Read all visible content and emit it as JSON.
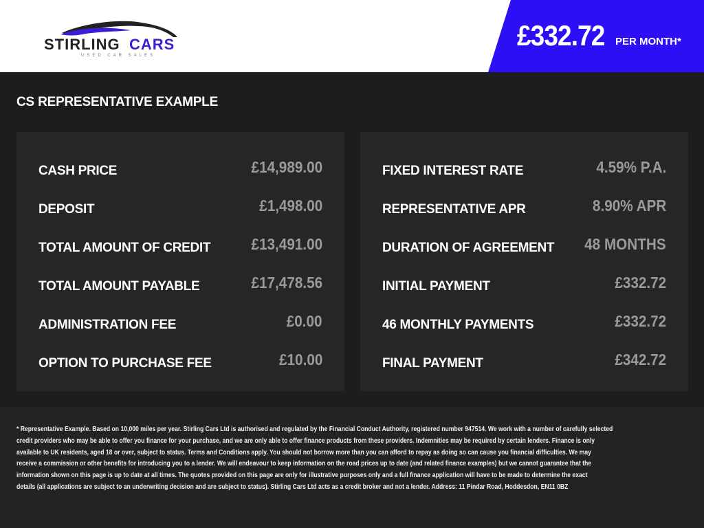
{
  "header": {
    "logo": {
      "brand_main": "STIRLING",
      "brand_accent": "CARS",
      "tagline": "USED CAR SALES"
    },
    "price": "£332.72",
    "price_suffix": "PER MONTH*",
    "accent_color": "#2d0ff5"
  },
  "section_title": "CS REPRESENTATIVE EXAMPLE",
  "left_panel": [
    {
      "label": "CASH PRICE",
      "value": "£14,989.00"
    },
    {
      "label": "DEPOSIT",
      "value": "£1,498.00"
    },
    {
      "label": "TOTAL AMOUNT OF CREDIT",
      "value": "£13,491.00"
    },
    {
      "label": "TOTAL AMOUNT PAYABLE",
      "value": "£17,478.56"
    },
    {
      "label": "ADMINISTRATION FEE",
      "value": "£0.00"
    },
    {
      "label": "OPTION TO PURCHASE FEE",
      "value": "£10.00"
    }
  ],
  "right_panel": [
    {
      "label": "FIXED INTEREST RATE",
      "value": "4.59% P.A."
    },
    {
      "label": "REPRESENTATIVE APR",
      "value": "8.90% APR"
    },
    {
      "label": "DURATION OF AGREEMENT",
      "value": "48 MONTHS"
    },
    {
      "label": "INITIAL PAYMENT",
      "value": "£332.72"
    },
    {
      "label": "46 MONTHLY PAYMENTS",
      "value": "£332.72"
    },
    {
      "label": "FINAL PAYMENT",
      "value": "£342.72"
    }
  ],
  "disclaimer_lines": [
    "* Representative Example. Based on 10,000 miles per year. Stirling Cars Ltd is authorised and regulated by the Financial Conduct Authority, registered number 947514. We work with a number of carefully selected",
    "credit providers who may be able to offer you finance for your purchase, and we are only able to offer finance products from these providers. Indemnities may be required by certain lenders. Finance is only",
    "available to UK residents, aged 18 or over, subject to status. Terms and Conditions apply. You should not borrow more than you can afford to repay as doing so can cause you financial difficulties. We may",
    "receive a commission or other benefits for introducing you to a lender. We will endeavour to keep information on the road prices up to date (and related finance examples) but we cannot guarantee that the",
    "information shown on this page is up to date at all times. The quotes provided on this page are only for illustrative purposes only and a full finance application will have to be made to determine the exact",
    "details (all applications are subject to an underwriting decision and are subject to status). Stirling Cars Ltd acts as a credit broker and not a lender. Address: 11 Pindar Road, Hoddesdon, EN11 0BZ"
  ]
}
